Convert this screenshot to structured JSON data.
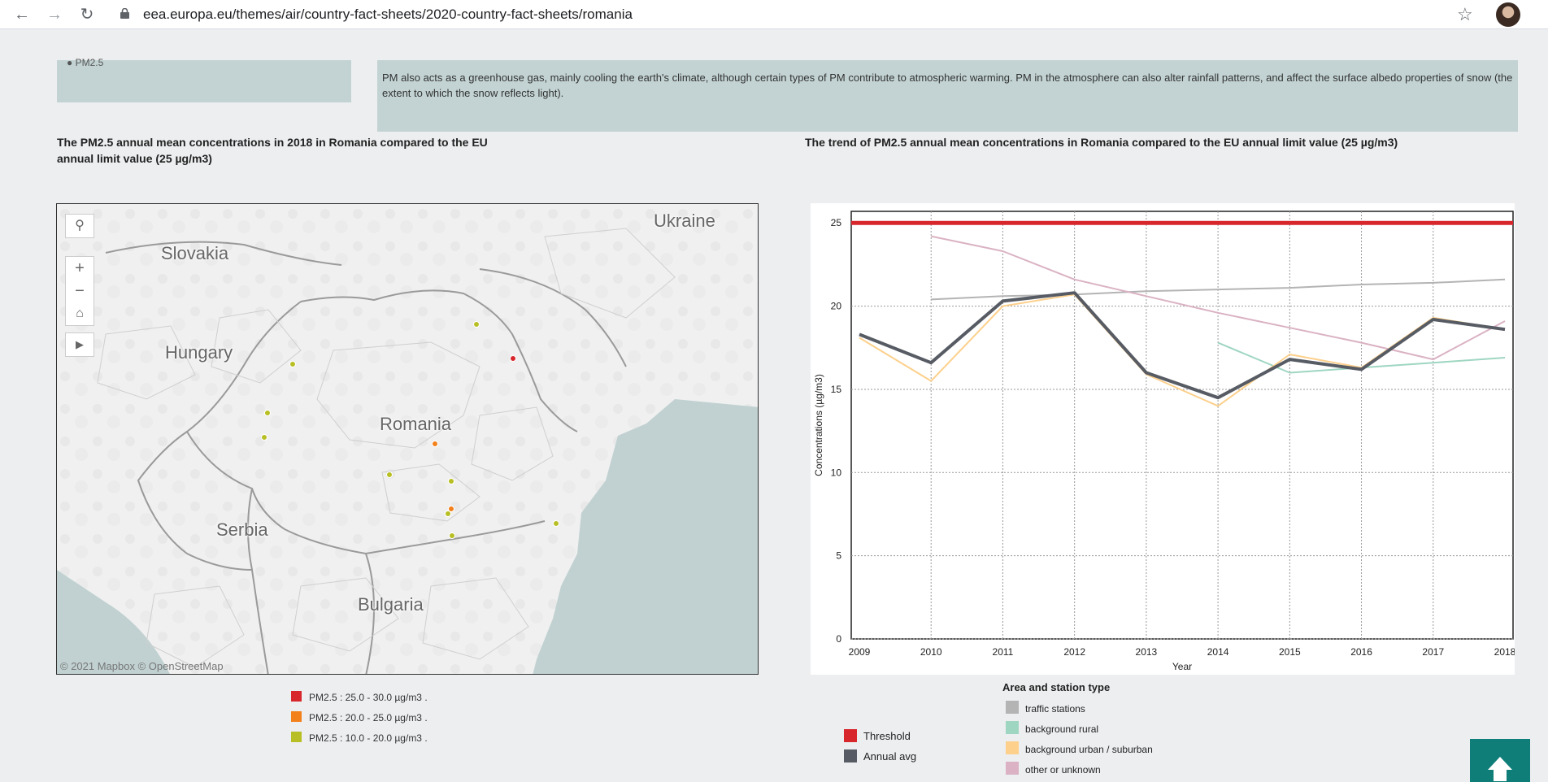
{
  "browser": {
    "back_icon": "arrow-left-icon",
    "forward_icon": "arrow-right-icon",
    "reload_icon": "reload-icon",
    "url": "eea.europa.eu/themes/air/country-fact-sheets/2020-country-fact-sheets/romania",
    "star_icon": "star-icon"
  },
  "info_box": {
    "text": "PM also acts as a greenhouse gas, mainly cooling the earth's climate, although certain types of PM contribute to atmospheric warming. PM in the atmosphere can also alter rainfall patterns, and affect the surface albedo properties of snow (the extent to which the snow reflects light)."
  },
  "map_section": {
    "heading": "The PM2.5 annual mean concentrations in 2018 in Romania compared to the EU annual limit value (25 µg/m3)",
    "country_labels": [
      "Ukraine",
      "Slovakia",
      "Hungary",
      "Romania",
      "Serbia",
      "Bulgaria"
    ],
    "attribution": "© 2021 Mapbox  © OpenStreetMap",
    "controls": {
      "search_icon": "search-icon",
      "zoom_in": "+",
      "zoom_out": "−",
      "home_icon": "home-icon",
      "play_icon": "play-icon"
    },
    "legend": [
      {
        "label": "PM2.5 : 25.0 - 30.0 µg/m3 .",
        "color": "#d7262c"
      },
      {
        "label": "PM2.5 : 20.0 - 25.0 µg/m3 .",
        "color": "#f2801b"
      },
      {
        "label": "PM2.5 : 10.0 - 20.0 µg/m3 .",
        "color": "#b8bf24"
      }
    ]
  },
  "chart_section": {
    "heading": "The trend of PM2.5 annual mean concentrations in Romania compared to the EU annual limit value (25 µg/m3)"
  },
  "chart_data": {
    "type": "line",
    "xlabel": "Year",
    "ylabel": "Concentrations (µg/m3)",
    "x": [
      "2009",
      "2010",
      "2011",
      "2012",
      "2013",
      "2014",
      "2015",
      "2016",
      "2017",
      "2018"
    ],
    "yticks": [
      0,
      5,
      10,
      15,
      20,
      25
    ],
    "ylim": [
      0,
      25.5
    ],
    "grid": true,
    "series": [
      {
        "name": "Threshold",
        "color": "#d7262c",
        "width": 5,
        "values": [
          25,
          25,
          25,
          25,
          25,
          25,
          25,
          25,
          25,
          25
        ]
      },
      {
        "name": "traffic stations",
        "color": "#b4b4b4",
        "width": 2,
        "values": [
          null,
          20.4,
          20.6,
          20.7,
          20.9,
          21.0,
          21.1,
          21.3,
          21.4,
          21.6
        ]
      },
      {
        "name": "background rural",
        "color": "#9fd6c2",
        "width": 2,
        "values": [
          null,
          null,
          null,
          null,
          null,
          17.8,
          16.0,
          16.3,
          16.6,
          16.9
        ]
      },
      {
        "name": "background urban / suburban",
        "color": "#fdd08c",
        "width": 2,
        "values": [
          18.1,
          15.5,
          20.0,
          20.7,
          15.9,
          14.0,
          17.1,
          16.3,
          19.3,
          18.6
        ]
      },
      {
        "name": "other or unknown",
        "color": "#dab2c3",
        "width": 2,
        "values": [
          null,
          24.2,
          23.3,
          21.6,
          20.6,
          19.6,
          18.7,
          17.8,
          16.8,
          19.1
        ]
      },
      {
        "name": "Annual avg",
        "color": "#575b63",
        "width": 4,
        "values": [
          18.3,
          16.6,
          20.3,
          20.8,
          16.0,
          14.5,
          16.8,
          16.2,
          19.2,
          18.6
        ]
      }
    ]
  },
  "threshold_legend": [
    {
      "label": "Threshold",
      "color": "#d7262c"
    },
    {
      "label": "Annual avg",
      "color": "#575b63"
    }
  ],
  "area_legend": {
    "title": "Area and station type",
    "items": [
      {
        "label": "traffic stations",
        "color": "#b4b4b4"
      },
      {
        "label": "background rural",
        "color": "#9fd6c2"
      },
      {
        "label": "background urban / suburban",
        "color": "#fdd08c"
      },
      {
        "label": "other or unknown",
        "color": "#dab2c3"
      }
    ]
  },
  "back_to_top": {
    "icon": "arrow-up-icon"
  }
}
